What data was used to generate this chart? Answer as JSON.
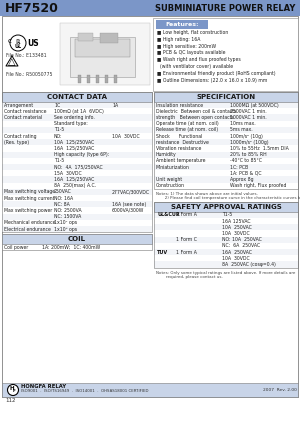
{
  "title_left": "HF7520",
  "title_right": "SUBMINIATURE POWER RELAY",
  "title_bg": "#7b96c8",
  "title_text_color": "#1a1a1a",
  "page_bg": "#ffffff",
  "section_header_bg": "#c8d4e8",
  "section_header_text": "#1a1a1a",
  "features_header_bg": "#7b96c8",
  "footer_bg": "#c8d4e8",
  "file_ul": "File No.: E133481",
  "file_tul": "File No.: R50050775",
  "footer_text": "HONGFA RELAY",
  "footer_cert": "ISO9001  .  ISO/TS16949  .  ISO14001  .  OHSAS18001 CERTIFIED",
  "footer_year": "2007  Rev. 2.00",
  "page_num": "112",
  "features": [
    "Low height, flat construction",
    "High rating: 16A",
    "High sensitive: 200mW",
    "PCB & QC layouts available",
    "Wash right and flux proofed types",
    "  (with ventilator cover) available",
    "Environmental friendly product (RoHS compliant)",
    "Outline Dimensions: (22.0 x 16.0 x 10.9) mm"
  ],
  "contact_rows": [
    [
      "Arrangement",
      "1C",
      "1A"
    ],
    [
      "Contact resistance",
      "100mΩ (at 1A  6VDC)",
      ""
    ],
    [
      "Contact material",
      "See ordering info.",
      ""
    ],
    [
      "",
      "Standard type:",
      ""
    ],
    [
      "",
      "T1-5",
      ""
    ],
    [
      "Contact rating",
      "NO:",
      "10A  30VDC"
    ],
    [
      "(Res. type)",
      "10A  125/250VAC",
      ""
    ],
    [
      "",
      "16A  125/250VAC",
      ""
    ],
    [
      "",
      "High capacity (type 6P):",
      ""
    ],
    [
      "",
      "T1-5",
      ""
    ],
    [
      "",
      "NO:  4A  175/250VAC",
      ""
    ],
    [
      "",
      "15A  30VDC",
      ""
    ],
    [
      "",
      "16A  125/250VAC",
      ""
    ],
    [
      "",
      "8A  250(max) A.C.",
      ""
    ],
    [
      "Max switching voltage",
      "250VAC",
      "277VAC/300VDC"
    ],
    [
      "Max switching current",
      "NO: 16A",
      ""
    ],
    [
      "",
      "NC: 8A",
      "16A (see note)"
    ],
    [
      "Max switching power",
      "NO: 2500VA",
      "6000VA/300W"
    ],
    [
      "",
      "NC: 1500VA",
      ""
    ],
    [
      "Mechanical endurance",
      "1x10⁷ ops",
      ""
    ],
    [
      "Electrical endurance",
      "1x10⁵ ops",
      ""
    ]
  ],
  "spec_rows": [
    [
      "Insulation resistance",
      "1000MΩ (at 500VDC)"
    ],
    [
      "Dielectric  Between coil & contacts",
      "2500VAC 1 min."
    ],
    [
      "strength   Between open contacts",
      "1000VAC 1 min."
    ],
    [
      "Operate time (at nom. coil)",
      "10ms max."
    ],
    [
      "Release time (at nom. coil)",
      "5ms max."
    ],
    [
      "Shock      Functional",
      "100m/s² (10g)"
    ],
    [
      "resistance  Destructive",
      "1000m/s² (100g)"
    ],
    [
      "Vibration resistance",
      "10% to 55Hz  1.5mm DIA"
    ],
    [
      "Humidity",
      "20% to 85% RH"
    ],
    [
      "Ambient temperature",
      "-40°C to 85°C"
    ],
    [
      "Miniaturization",
      "1C: PCB"
    ],
    [
      "",
      "1A: PCB & QC"
    ],
    [
      "Unit weight",
      "Approx 8g"
    ],
    [
      "Construction",
      "Wash right, Flux proofed"
    ]
  ],
  "safety_rows": [
    [
      "UL&CUR",
      "1 Form A",
      "T1-5"
    ],
    [
      "",
      "",
      "16A 125VAC"
    ],
    [
      "",
      "",
      "10A  250VAC"
    ],
    [
      "",
      "",
      "10A  30VDC"
    ],
    [
      "",
      "1 Form C",
      "NO: 10A  250VAC"
    ],
    [
      "",
      "",
      "NC:  6A  250VAC"
    ],
    [
      "TUV",
      "1 Form A",
      "16A  250VAC"
    ],
    [
      "",
      "",
      "10A  30VDC"
    ],
    [
      "",
      "",
      "8A  250VAC (cosφ=0.4)"
    ]
  ]
}
